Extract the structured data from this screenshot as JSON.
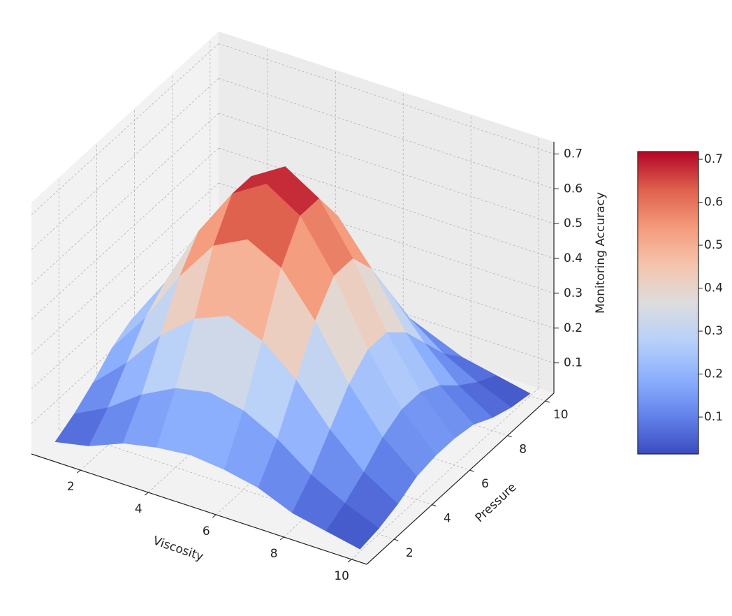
{
  "chart_data": {
    "type": "surface",
    "x": [
      1,
      2,
      3,
      4,
      5,
      6,
      7,
      8,
      9,
      10
    ],
    "y": [
      1,
      2,
      3,
      4,
      5,
      6,
      7,
      8,
      9,
      10
    ],
    "z": [
      [
        0.04,
        0.06,
        0.1,
        0.12,
        0.13,
        0.12,
        0.1,
        0.06,
        0.04,
        0.02
      ],
      [
        0.07,
        0.12,
        0.19,
        0.24,
        0.26,
        0.24,
        0.19,
        0.12,
        0.07,
        0.03
      ],
      [
        0.11,
        0.2,
        0.31,
        0.39,
        0.43,
        0.39,
        0.31,
        0.2,
        0.11,
        0.05
      ],
      [
        0.16,
        0.28,
        0.43,
        0.55,
        0.6,
        0.55,
        0.43,
        0.28,
        0.16,
        0.08
      ],
      [
        0.19,
        0.33,
        0.51,
        0.65,
        0.71,
        0.65,
        0.51,
        0.33,
        0.19,
        0.09
      ],
      [
        0.19,
        0.33,
        0.51,
        0.65,
        0.71,
        0.65,
        0.51,
        0.33,
        0.19,
        0.09
      ],
      [
        0.16,
        0.28,
        0.43,
        0.55,
        0.6,
        0.55,
        0.43,
        0.28,
        0.16,
        0.08
      ],
      [
        0.11,
        0.2,
        0.31,
        0.39,
        0.43,
        0.39,
        0.31,
        0.2,
        0.11,
        0.05
      ],
      [
        0.07,
        0.12,
        0.19,
        0.24,
        0.26,
        0.24,
        0.19,
        0.12,
        0.07,
        0.03
      ],
      [
        0.04,
        0.06,
        0.1,
        0.12,
        0.13,
        0.12,
        0.1,
        0.06,
        0.04,
        0.02
      ]
    ],
    "xlabel": "Viscosity",
    "ylabel": "Pressure",
    "zlabel": "Monitoring Accuracy",
    "xlim": [
      0.55,
      10.45
    ],
    "ylim": [
      0.55,
      10.45
    ],
    "zlim": [
      0.013,
      0.735
    ],
    "xticks": [
      2,
      4,
      6,
      8,
      10
    ],
    "yticks": [
      2,
      4,
      6,
      8,
      10
    ],
    "zticks": [
      0.1,
      0.2,
      0.3,
      0.4,
      0.5,
      0.6,
      0.7
    ],
    "colormap": "coolwarm",
    "grid": true,
    "colorbar": {
      "clim": [
        0.014,
        0.718
      ],
      "ticks": [
        0.1,
        0.2,
        0.3,
        0.4,
        0.5,
        0.6,
        0.7
      ]
    }
  }
}
